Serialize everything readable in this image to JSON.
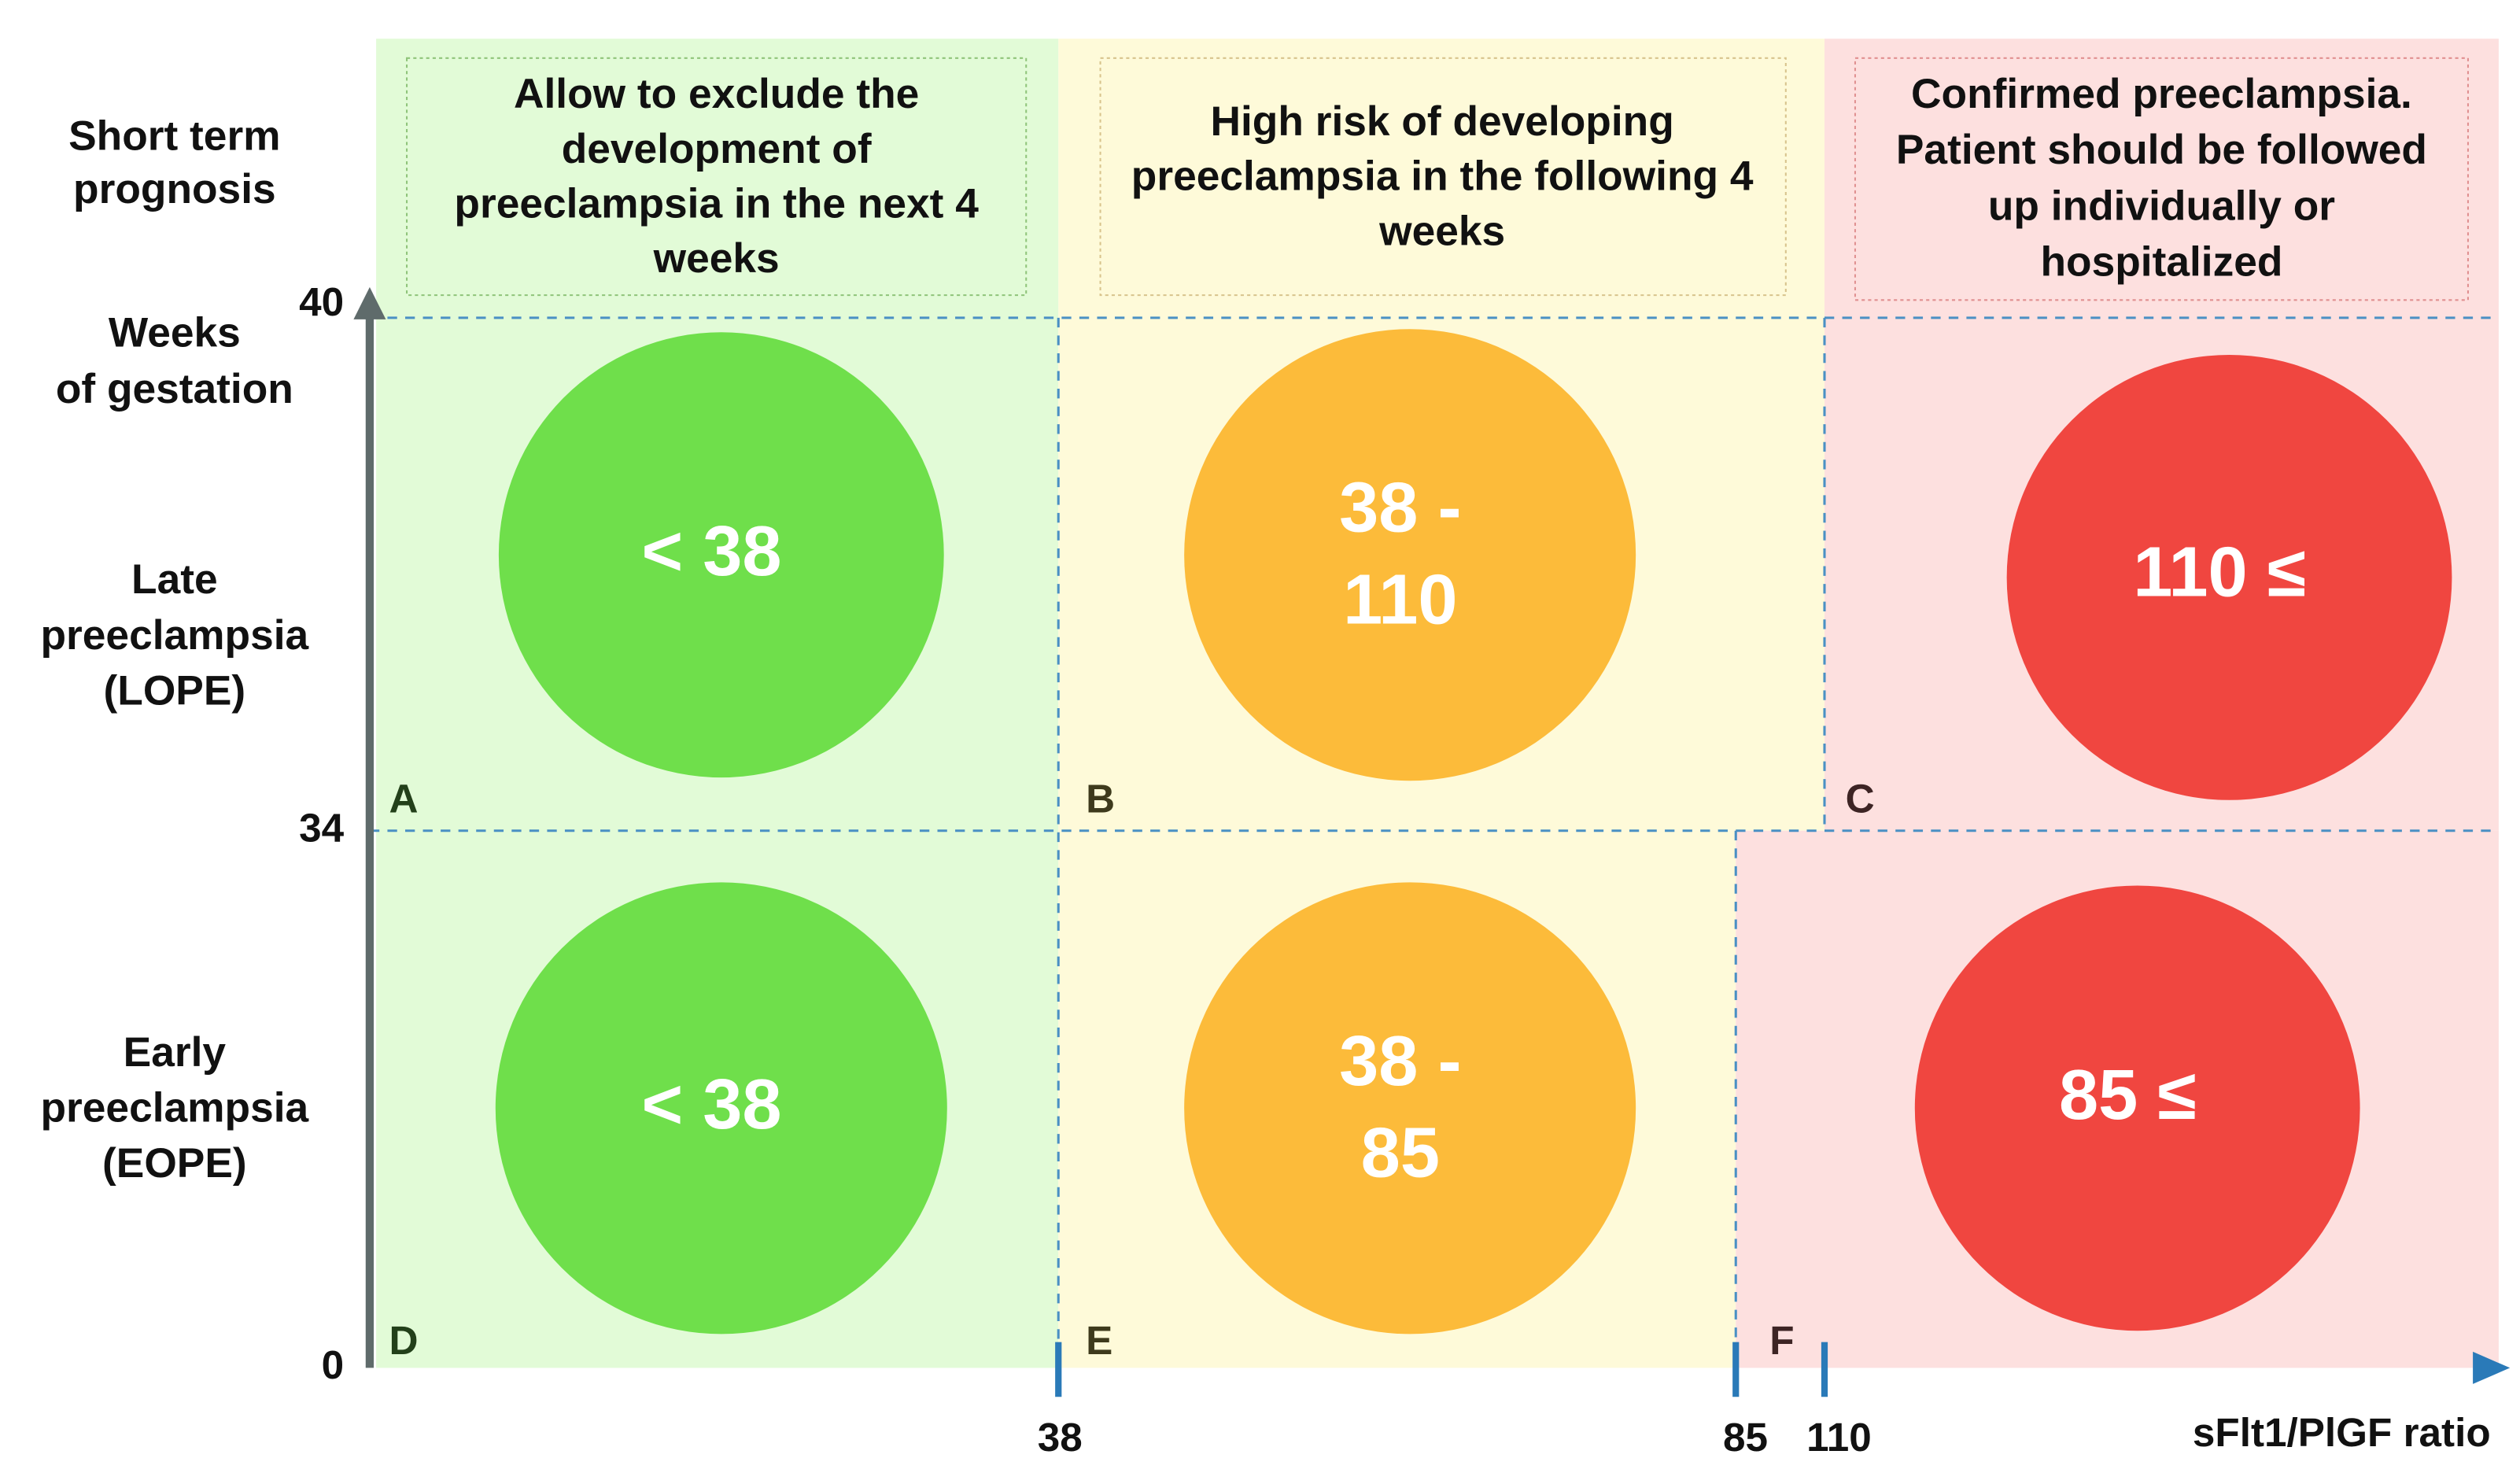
{
  "row_labels": {
    "prognosis": [
      "Short term",
      "prognosis"
    ],
    "weeks": [
      "Weeks",
      "of gestation"
    ],
    "late": [
      "Late",
      "preeclampsia",
      "(LOPE)"
    ],
    "early": [
      "Early",
      "preeclampsia",
      "(EOPE)"
    ]
  },
  "headers": [
    [
      "Allow to exclude the",
      "development of",
      "preeclampsia in the next 4",
      "weeks"
    ],
    [
      "High risk of developing",
      "preeclampsia in the following 4",
      "weeks"
    ],
    [
      "Confirmed preeclampsia.",
      "Patient should be followed",
      "up individually or",
      "hospitalized"
    ]
  ],
  "zones": [
    {
      "letter": "A",
      "text": [
        "< 38"
      ]
    },
    {
      "letter": "B",
      "text": [
        "38 -",
        "110"
      ]
    },
    {
      "letter": "C",
      "text": [
        "110 ≤"
      ]
    },
    {
      "letter": "D",
      "text": [
        "< 38"
      ]
    },
    {
      "letter": "E",
      "text": [
        "38 -",
        "85"
      ]
    },
    {
      "letter": "F",
      "text": [
        "85 ≤"
      ]
    }
  ],
  "y_axis": {
    "ticks": [
      "40",
      "34",
      "0"
    ]
  },
  "x_axis": {
    "ticks": [
      "38",
      "85",
      "110"
    ],
    "label": "sFlt1/PlGF ratio"
  }
}
